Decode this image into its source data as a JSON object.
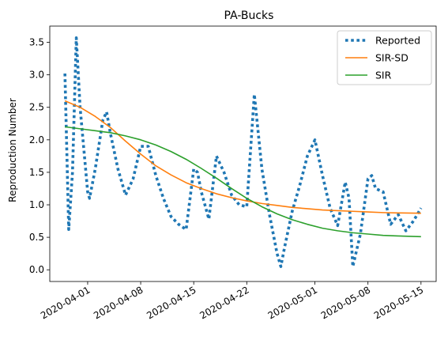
{
  "chart_data": {
    "type": "line",
    "title": "PA-Bucks",
    "xlabel": "",
    "ylabel": "Reproduction Number",
    "xlim": [
      "2020-03-27",
      "2020-05-17"
    ],
    "ylim": [
      -0.18,
      3.75
    ],
    "x_ticks": [
      "2020-04-01",
      "2020-04-08",
      "2020-04-15",
      "2020-04-22",
      "2020-05-01",
      "2020-05-08",
      "2020-05-15"
    ],
    "y_ticks": [
      0.0,
      0.5,
      1.0,
      1.5,
      2.0,
      2.5,
      3.0,
      3.5
    ],
    "y_tick_labels": [
      "0.0",
      "0.5",
      "1.0",
      "1.5",
      "2.0",
      "2.5",
      "3.0",
      "3.5"
    ],
    "grid": false,
    "legend": {
      "placement": "top-right"
    },
    "series": [
      {
        "name": "Reported",
        "style": "dotted",
        "color": "#1f77b4",
        "points": [
          [
            "2020-03-29",
            3.02
          ],
          [
            "2020-03-29T12:00",
            0.62
          ],
          [
            "2020-03-30",
            1.5
          ],
          [
            "2020-03-30T12:00",
            3.57
          ],
          [
            "2020-03-31",
            2.5
          ],
          [
            "2020-04-01",
            1.2
          ],
          [
            "2020-04-01T06:00",
            1.1
          ],
          [
            "2020-04-02",
            1.55
          ],
          [
            "2020-04-03",
            2.3
          ],
          [
            "2020-04-03T12:00",
            2.43
          ],
          [
            "2020-04-04",
            2.1
          ],
          [
            "2020-04-05",
            1.55
          ],
          [
            "2020-04-06",
            1.15
          ],
          [
            "2020-04-07",
            1.4
          ],
          [
            "2020-04-08",
            1.9
          ],
          [
            "2020-04-09",
            1.9
          ],
          [
            "2020-04-10",
            1.45
          ],
          [
            "2020-04-11",
            1.1
          ],
          [
            "2020-04-12",
            0.82
          ],
          [
            "2020-04-13",
            0.7
          ],
          [
            "2020-04-14",
            0.62
          ],
          [
            "2020-04-15",
            1.55
          ],
          [
            "2020-04-15T12:00",
            1.5
          ],
          [
            "2020-04-16",
            1.2
          ],
          [
            "2020-04-17",
            0.78
          ],
          [
            "2020-04-18",
            1.75
          ],
          [
            "2020-04-19",
            1.5
          ],
          [
            "2020-04-20",
            1.15
          ],
          [
            "2020-04-21",
            1.0
          ],
          [
            "2020-04-22",
            0.97
          ],
          [
            "2020-04-23",
            2.7
          ],
          [
            "2020-04-24",
            1.55
          ],
          [
            "2020-04-25",
            0.85
          ],
          [
            "2020-04-26",
            0.25
          ],
          [
            "2020-04-26T12:00",
            0.05
          ],
          [
            "2020-04-27",
            0.35
          ],
          [
            "2020-04-28",
            0.9
          ],
          [
            "2020-04-29",
            1.3
          ],
          [
            "2020-04-30",
            1.75
          ],
          [
            "2020-05-01",
            2.0
          ],
          [
            "2020-05-02",
            1.45
          ],
          [
            "2020-05-03",
            0.95
          ],
          [
            "2020-05-04",
            0.68
          ],
          [
            "2020-05-05",
            1.35
          ],
          [
            "2020-05-05T12:00",
            1.1
          ],
          [
            "2020-05-06",
            0.05
          ],
          [
            "2020-05-07",
            0.55
          ],
          [
            "2020-05-08",
            1.4
          ],
          [
            "2020-05-08T12:00",
            1.45
          ],
          [
            "2020-05-09",
            1.25
          ],
          [
            "2020-05-10",
            1.2
          ],
          [
            "2020-05-11",
            0.7
          ],
          [
            "2020-05-12",
            0.85
          ],
          [
            "2020-05-13",
            0.6
          ],
          [
            "2020-05-14",
            0.75
          ],
          [
            "2020-05-15",
            0.95
          ]
        ]
      },
      {
        "name": "SIR-SD",
        "style": "solid",
        "color": "#ff7f0e",
        "points": [
          [
            "2020-03-29",
            2.6
          ],
          [
            "2020-03-31",
            2.5
          ],
          [
            "2020-04-02",
            2.36
          ],
          [
            "2020-04-04",
            2.19
          ],
          [
            "2020-04-06",
            1.98
          ],
          [
            "2020-04-08",
            1.78
          ],
          [
            "2020-04-10",
            1.6
          ],
          [
            "2020-04-12",
            1.46
          ],
          [
            "2020-04-14",
            1.34
          ],
          [
            "2020-04-16",
            1.25
          ],
          [
            "2020-04-18",
            1.17
          ],
          [
            "2020-04-20",
            1.11
          ],
          [
            "2020-04-22",
            1.06
          ],
          [
            "2020-04-24",
            1.02
          ],
          [
            "2020-04-26",
            0.99
          ],
          [
            "2020-04-28",
            0.96
          ],
          [
            "2020-04-30",
            0.94
          ],
          [
            "2020-05-02",
            0.92
          ],
          [
            "2020-05-04",
            0.91
          ],
          [
            "2020-05-06",
            0.9
          ],
          [
            "2020-05-08",
            0.89
          ],
          [
            "2020-05-10",
            0.88
          ],
          [
            "2020-05-12",
            0.875
          ],
          [
            "2020-05-15",
            0.87
          ]
        ]
      },
      {
        "name": "SIR",
        "style": "solid",
        "color": "#2ca02c",
        "points": [
          [
            "2020-03-29",
            2.2
          ],
          [
            "2020-03-31",
            2.17
          ],
          [
            "2020-04-02",
            2.14
          ],
          [
            "2020-04-04",
            2.11
          ],
          [
            "2020-04-06",
            2.06
          ],
          [
            "2020-04-08",
            2.0
          ],
          [
            "2020-04-10",
            1.92
          ],
          [
            "2020-04-12",
            1.82
          ],
          [
            "2020-04-14",
            1.7
          ],
          [
            "2020-04-16",
            1.56
          ],
          [
            "2020-04-18",
            1.41
          ],
          [
            "2020-04-20",
            1.25
          ],
          [
            "2020-04-22",
            1.1
          ],
          [
            "2020-04-24",
            0.97
          ],
          [
            "2020-04-26",
            0.86
          ],
          [
            "2020-04-28",
            0.77
          ],
          [
            "2020-04-30",
            0.7
          ],
          [
            "2020-05-02",
            0.64
          ],
          [
            "2020-05-04",
            0.6
          ],
          [
            "2020-05-06",
            0.57
          ],
          [
            "2020-05-08",
            0.55
          ],
          [
            "2020-05-10",
            0.53
          ],
          [
            "2020-05-12",
            0.52
          ],
          [
            "2020-05-15",
            0.51
          ]
        ]
      }
    ]
  }
}
